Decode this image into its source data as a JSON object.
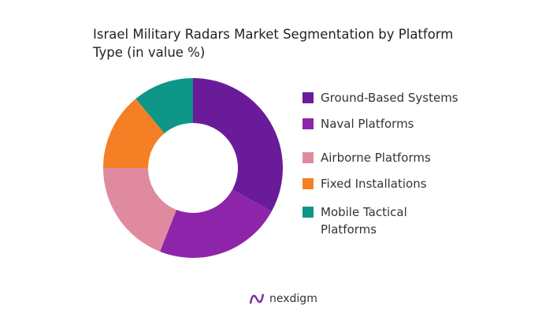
{
  "chart_data": {
    "type": "donut",
    "title": "Israel Military Radars Market Segmentation by Platform Type (in value %)",
    "categories": [
      "Ground-Based Systems",
      "Naval Platforms",
      "Airborne Platforms",
      "Fixed Installations",
      "Mobile Tactical Platforms"
    ],
    "values": [
      33,
      23,
      19,
      14,
      11
    ],
    "colors": [
      "#6a1b9a",
      "#8e24aa",
      "#e08a9f",
      "#f47f24",
      "#0e9688"
    ]
  },
  "brand": "nexdigm"
}
